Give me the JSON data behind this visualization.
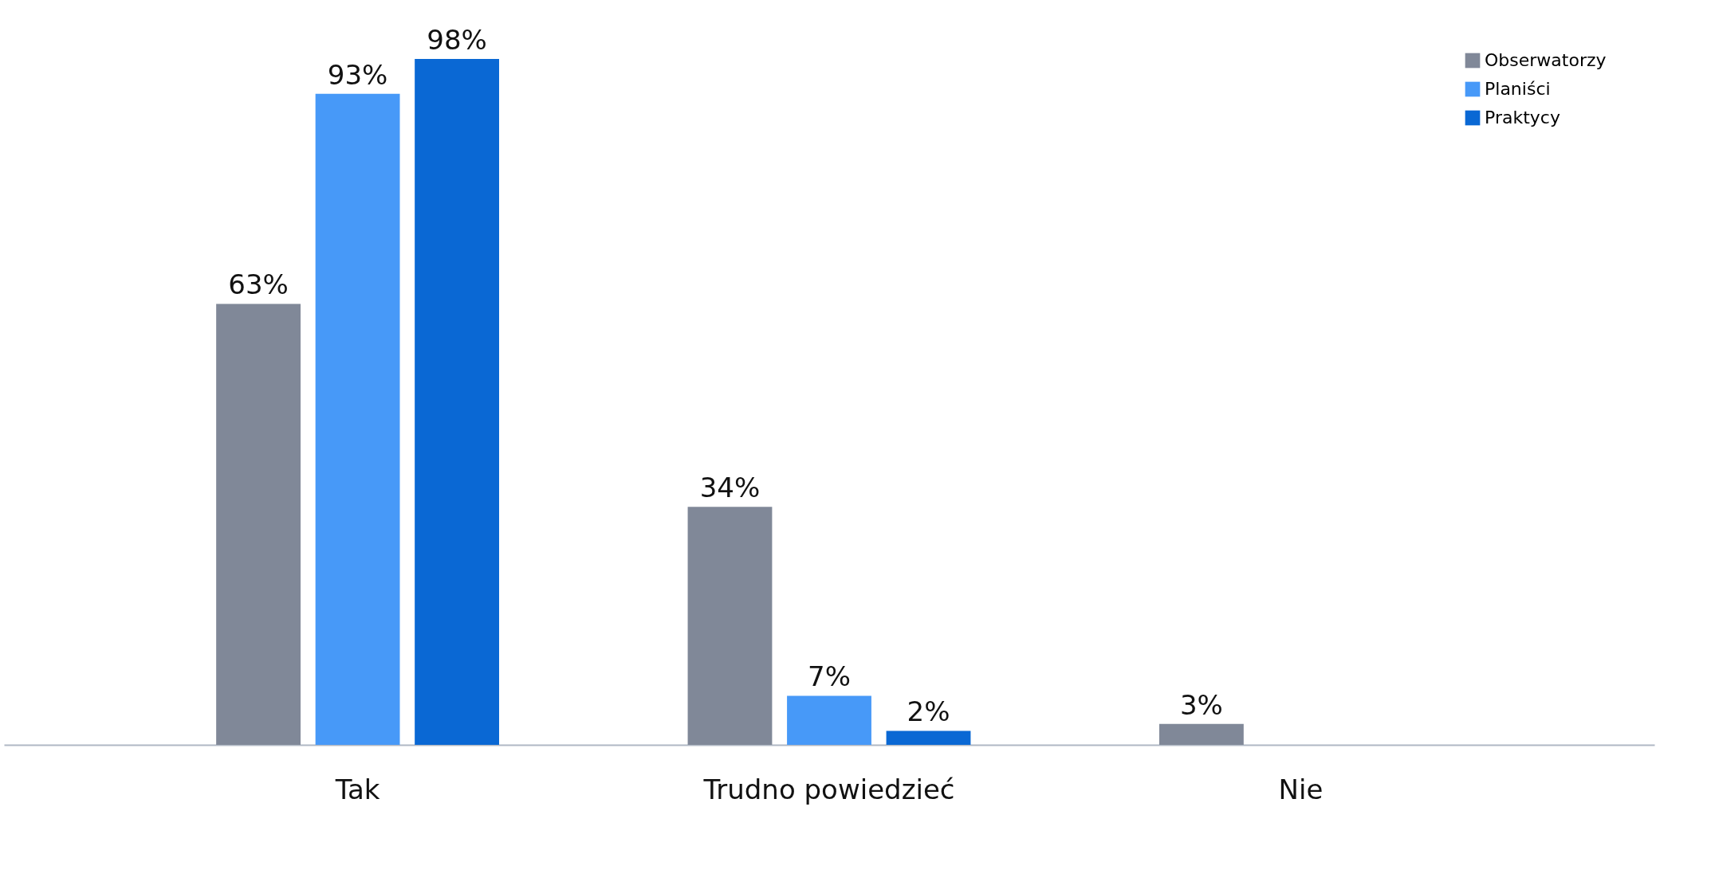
{
  "chart_data": {
    "type": "bar",
    "categories": [
      "Tak",
      "Trudno powiedzieć",
      "Nie"
    ],
    "series": [
      {
        "name": "Obserwatorzy",
        "color": "#808898",
        "values": [
          63,
          34,
          3
        ],
        "value_labels": [
          "63%",
          "34%",
          "3%"
        ]
      },
      {
        "name": "Planiści",
        "color": "#4799f8",
        "values": [
          93,
          7,
          null
        ],
        "value_labels": [
          "93%",
          "7%",
          null
        ]
      },
      {
        "name": "Praktycy",
        "color": "#0a68d4",
        "values": [
          98,
          2,
          null
        ],
        "value_labels": [
          "98%",
          "2%",
          null
        ]
      }
    ],
    "legend": "top right",
    "grid": false
  }
}
